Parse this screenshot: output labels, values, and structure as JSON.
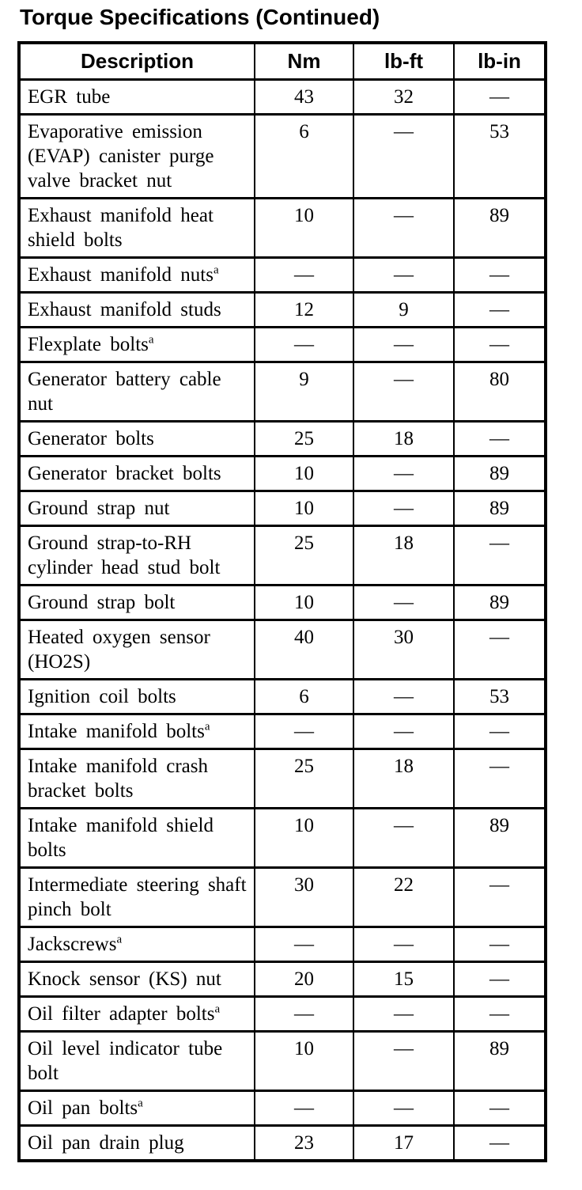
{
  "title": "Torque Specifications (Continued)",
  "table": {
    "columns": {
      "description": "Description",
      "nm": "Nm",
      "lb_ft": "lb-ft",
      "lb_in": "lb-in"
    },
    "footnote_marker": "a",
    "empty_value": "—",
    "rows": [
      {
        "description": "EGR tube",
        "footnote": false,
        "nm": "43",
        "lb_ft": "32",
        "lb_in": "—"
      },
      {
        "description": "Evaporative emission (EVAP) canister purge valve bracket nut",
        "footnote": false,
        "nm": "6",
        "lb_ft": "—",
        "lb_in": "53"
      },
      {
        "description": "Exhaust manifold heat shield bolts",
        "footnote": false,
        "nm": "10",
        "lb_ft": "—",
        "lb_in": "89"
      },
      {
        "description": "Exhaust manifold nuts",
        "footnote": true,
        "nm": "—",
        "lb_ft": "—",
        "lb_in": "—"
      },
      {
        "description": "Exhaust manifold studs",
        "footnote": false,
        "nm": "12",
        "lb_ft": "9",
        "lb_in": "—"
      },
      {
        "description": "Flexplate bolts",
        "footnote": true,
        "nm": "—",
        "lb_ft": "—",
        "lb_in": "—"
      },
      {
        "description": "Generator battery cable nut",
        "footnote": false,
        "nm": "9",
        "lb_ft": "—",
        "lb_in": "80"
      },
      {
        "description": "Generator bolts",
        "footnote": false,
        "nm": "25",
        "lb_ft": "18",
        "lb_in": "—"
      },
      {
        "description": "Generator bracket bolts",
        "footnote": false,
        "nm": "10",
        "lb_ft": "—",
        "lb_in": "89"
      },
      {
        "description": "Ground strap nut",
        "footnote": false,
        "nm": "10",
        "lb_ft": "—",
        "lb_in": "89"
      },
      {
        "description": "Ground strap-to-RH cylinder head stud bolt",
        "footnote": false,
        "nm": "25",
        "lb_ft": "18",
        "lb_in": "—"
      },
      {
        "description": "Ground strap bolt",
        "footnote": false,
        "nm": "10",
        "lb_ft": "—",
        "lb_in": "89"
      },
      {
        "description": "Heated oxygen sensor (HO2S)",
        "footnote": false,
        "nm": "40",
        "lb_ft": "30",
        "lb_in": "—"
      },
      {
        "description": "Ignition coil bolts",
        "footnote": false,
        "nm": "6",
        "lb_ft": "—",
        "lb_in": "53"
      },
      {
        "description": "Intake manifold bolts",
        "footnote": true,
        "nm": "—",
        "lb_ft": "—",
        "lb_in": "—"
      },
      {
        "description": "Intake manifold crash bracket bolts",
        "footnote": false,
        "nm": "25",
        "lb_ft": "18",
        "lb_in": "—"
      },
      {
        "description": "Intake manifold shield bolts",
        "footnote": false,
        "nm": "10",
        "lb_ft": "—",
        "lb_in": "89"
      },
      {
        "description": "Intermediate steering shaft pinch bolt",
        "footnote": false,
        "nm": "30",
        "lb_ft": "22",
        "lb_in": "—"
      },
      {
        "description": "Jackscrews",
        "footnote": true,
        "nm": "—",
        "lb_ft": "—",
        "lb_in": "—"
      },
      {
        "description": "Knock sensor (KS) nut",
        "footnote": false,
        "nm": "20",
        "lb_ft": "15",
        "lb_in": "—"
      },
      {
        "description": "Oil filter adapter bolts",
        "footnote": true,
        "nm": "—",
        "lb_ft": "—",
        "lb_in": "—"
      },
      {
        "description": "Oil level indicator tube bolt",
        "footnote": false,
        "nm": "10",
        "lb_ft": "—",
        "lb_in": "89"
      },
      {
        "description": "Oil pan bolts",
        "footnote": true,
        "nm": "—",
        "lb_ft": "—",
        "lb_in": "—"
      },
      {
        "description": "Oil pan drain plug",
        "footnote": false,
        "nm": "23",
        "lb_ft": "17",
        "lb_in": "—"
      }
    ]
  }
}
